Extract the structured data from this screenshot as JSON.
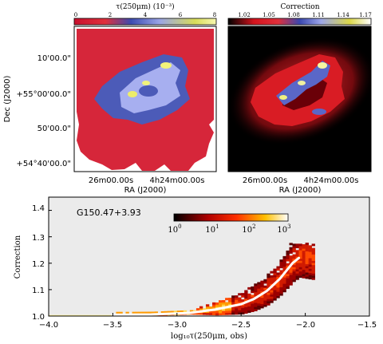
{
  "chart_data": [
    {
      "type": "heatmap",
      "colorbar": {
        "title": "τ(250μm) (10⁻³)",
        "ticks": [
          "0",
          "2",
          "4",
          "6",
          "8"
        ],
        "colormap": "red-blue-yellow"
      },
      "ylabel": "Dec (J2000)",
      "xlabel": "RA (J2000)",
      "yticks": [
        "10'00.0\"",
        "+55°00'00.0\"",
        "50'00.0\"",
        "+54°40'00.0\""
      ],
      "xticks": [
        "26m00.00s",
        "4h24m00.00s"
      ]
    },
    {
      "type": "heatmap",
      "colorbar": {
        "title": "Correction",
        "ticks": [
          "1.02",
          "1.05",
          "1.08",
          "1.11",
          "1.14",
          "1.17"
        ],
        "colormap": "black-red-blue-yellow-white"
      },
      "xlabel": "RA (J2000)",
      "xticks": [
        "26m00.00s",
        "4h24m00.00s"
      ]
    },
    {
      "type": "heatmap",
      "annotation": "G150.47+3.93",
      "xlabel": "log₁₀τ(250μm, obs)",
      "ylabel": "Correction",
      "xlim": [
        -4.0,
        -1.5
      ],
      "ylim": [
        1.0,
        1.45
      ],
      "xticks": [
        "−4.0",
        "−3.5",
        "−3.0",
        "−2.5",
        "−2.0",
        "−1.5"
      ],
      "yticks": [
        "1.0",
        "1.1",
        "1.2",
        "1.3",
        "1.4"
      ],
      "colorbar": {
        "ticks_base": [
          "10",
          "10",
          "10",
          "10"
        ],
        "ticks_exp": [
          "0",
          "1",
          "2",
          "3"
        ],
        "colormap": "hot"
      },
      "trend_line": {
        "x": [
          -3.5,
          -3.2,
          -2.9,
          -2.7,
          -2.5,
          -2.4,
          -2.3,
          -2.2,
          -2.1,
          -2.05
        ],
        "y": [
          1.005,
          1.006,
          1.012,
          1.025,
          1.045,
          1.065,
          1.095,
          1.14,
          1.2,
          1.22
        ]
      },
      "colors": {
        "background": "#ebebeb",
        "trend": "#ffffff"
      }
    }
  ]
}
